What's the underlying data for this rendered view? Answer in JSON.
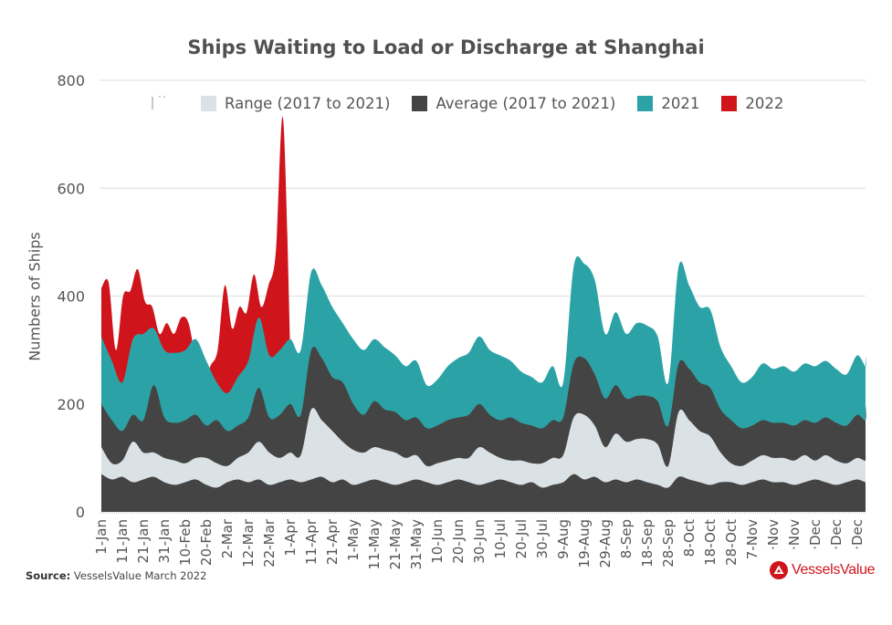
{
  "chart_data": {
    "type": "area",
    "title": "Ships Waiting to Load or Discharge at Shanghai",
    "xlabel": "",
    "ylabel": "Numbers of Ships",
    "ylim": [
      0,
      800
    ],
    "yticks": [
      0,
      200,
      400,
      600,
      800
    ],
    "grid": true,
    "legend_position": "top",
    "x_day_step": 5,
    "x_tick_labels": [
      "1-Jan",
      "11-Jan",
      "21-Jan",
      "31-Jan",
      "10-Feb",
      "20-Feb",
      "2-Mar",
      "12-Mar",
      "22-Mar",
      "1-Apr",
      "11-Apr",
      "21-Apr",
      "1-May",
      "11-May",
      "21-May",
      "31-May",
      "10-Jun",
      "20-Jun",
      "30-Jun",
      "10-Jul",
      "20-Jul",
      "30-Jul",
      "9-Aug",
      "19-Aug",
      "29-Aug",
      "8-Sep",
      "18-Sep",
      "28-Sep",
      "8-Oct",
      "18-Oct",
      "28-Oct",
      "7-Nov",
      "·Nov",
      "·Nov",
      "·Dec",
      "·Dec",
      "·Dec"
    ],
    "series": [
      {
        "name": "2022",
        "color": "#d0141c",
        "kind": "area",
        "values": [
          415,
          425,
          300,
          400,
          410,
          450,
          390,
          380,
          330,
          350,
          330,
          360,
          350,
          280,
          230,
          270,
          300,
          420,
          340,
          380,
          370,
          440,
          380,
          420,
          480,
          730,
          300
        ]
      },
      {
        "name": "2021",
        "color": "#2ba3a6",
        "kind": "area",
        "values": [
          325,
          280,
          240,
          320,
          330,
          340,
          300,
          295,
          300,
          320,
          280,
          240,
          220,
          250,
          280,
          360,
          290,
          300,
          320,
          300,
          445,
          420,
          380,
          350,
          320,
          300,
          320,
          305,
          290,
          270,
          280,
          235,
          245,
          270,
          285,
          295,
          325,
          300,
          290,
          280,
          260,
          250,
          240,
          270,
          240,
          455,
          460,
          430,
          330,
          370,
          330,
          350,
          345,
          325,
          240,
          455,
          420,
          380,
          375,
          305,
          270,
          240,
          250,
          275,
          265,
          270,
          260,
          275,
          270,
          280,
          265,
          255,
          290,
          270,
          290
        ]
      },
      {
        "name": "Average (2017 to 2021)",
        "color": "#454445",
        "kind": "area",
        "values": [
          200,
          170,
          150,
          180,
          170,
          235,
          175,
          165,
          170,
          180,
          160,
          170,
          150,
          160,
          175,
          230,
          175,
          180,
          200,
          180,
          300,
          285,
          250,
          240,
          200,
          180,
          205,
          190,
          185,
          170,
          175,
          155,
          160,
          170,
          175,
          180,
          200,
          180,
          170,
          175,
          165,
          160,
          155,
          170,
          175,
          275,
          285,
          255,
          210,
          235,
          210,
          215,
          215,
          205,
          160,
          275,
          265,
          240,
          230,
          190,
          170,
          155,
          160,
          170,
          165,
          165,
          160,
          170,
          165,
          175,
          165,
          160,
          180,
          170,
          200
        ]
      },
      {
        "name": "Range (2017 to 2021)",
        "color": "#dbe2e5",
        "kind": "band",
        "lower": [
          70,
          60,
          65,
          55,
          60,
          65,
          55,
          50,
          55,
          60,
          50,
          45,
          55,
          60,
          55,
          60,
          50,
          55,
          60,
          55,
          60,
          65,
          55,
          60,
          50,
          55,
          60,
          55,
          50,
          55,
          60,
          55,
          50,
          55,
          60,
          55,
          50,
          55,
          60,
          55,
          50,
          55,
          45,
          50,
          55,
          70,
          60,
          65,
          55,
          60,
          55,
          60,
          55,
          50,
          45,
          65,
          60,
          55,
          50,
          55,
          55,
          50,
          55,
          60,
          55,
          55,
          50,
          55,
          60,
          55,
          50,
          55,
          60,
          55,
          60
        ],
        "upper": [
          120,
          90,
          95,
          130,
          110,
          110,
          100,
          95,
          90,
          100,
          100,
          90,
          85,
          100,
          110,
          130,
          110,
          100,
          110,
          105,
          190,
          170,
          150,
          130,
          115,
          110,
          120,
          115,
          110,
          100,
          105,
          85,
          90,
          95,
          100,
          100,
          120,
          110,
          100,
          95,
          95,
          90,
          90,
          100,
          105,
          175,
          180,
          160,
          120,
          145,
          130,
          135,
          135,
          125,
          85,
          185,
          170,
          150,
          140,
          110,
          90,
          85,
          95,
          105,
          100,
          100,
          95,
          105,
          95,
          105,
          95,
          90,
          100,
          95,
          110
        ]
      }
    ]
  },
  "legend": {
    "items": [
      {
        "label": "Range (2017 to 2021)",
        "color": "#dbe2e5"
      },
      {
        "label": "Average (2017 to 2021)",
        "color": "#454445"
      },
      {
        "label": "2021",
        "color": "#2ba3a6"
      },
      {
        "label": "2022",
        "color": "#d0141c"
      }
    ]
  },
  "source": {
    "label": "Source:",
    "text": "VesselsValue March 2022"
  },
  "brand": {
    "name": "VesselsValue",
    "color": "#d0141c"
  }
}
